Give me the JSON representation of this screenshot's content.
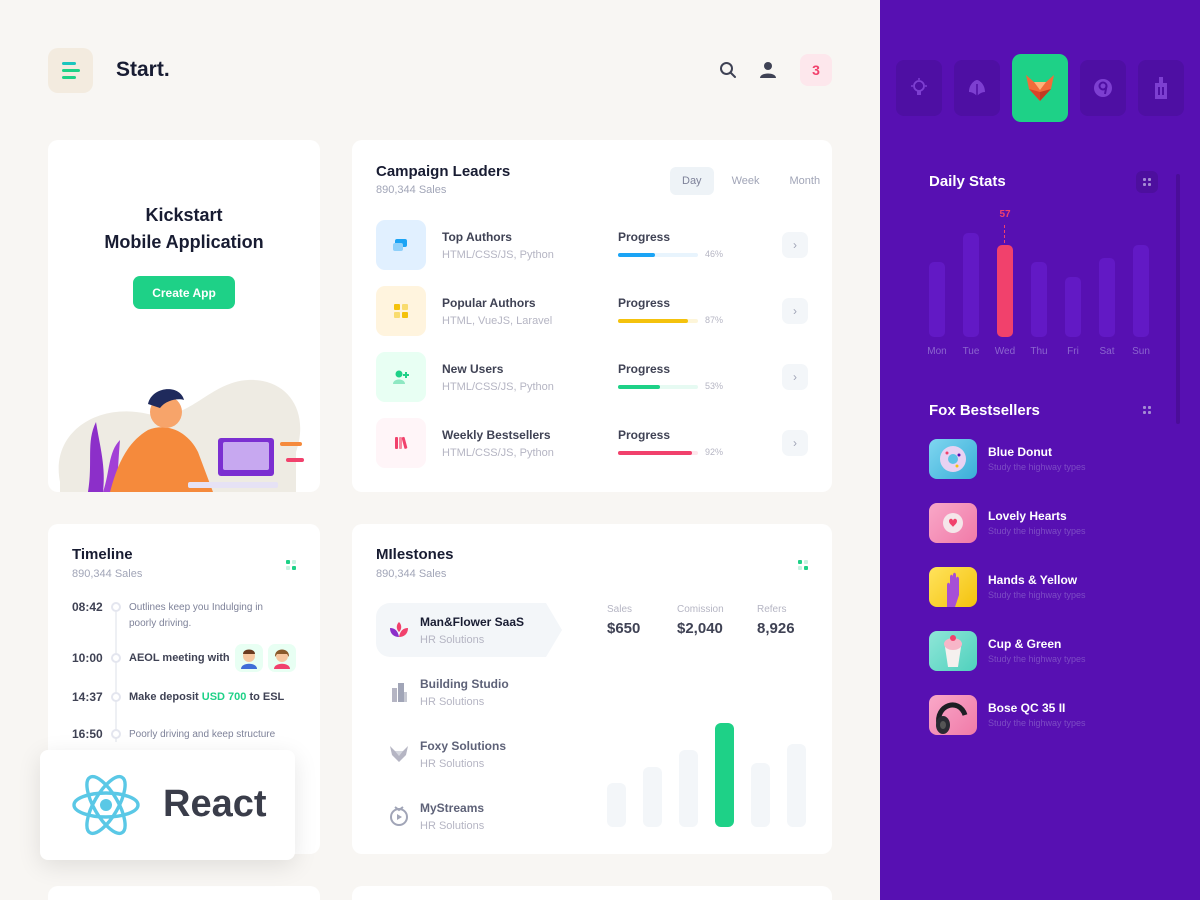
{
  "header": {
    "brand": "Start.",
    "notification_count": "3"
  },
  "kickstart": {
    "title_line1": "Kickstart",
    "title_line2": "Mobile Application",
    "button_label": "Create App"
  },
  "campaign": {
    "title": "Campaign Leaders",
    "subtitle": "890,344 Sales",
    "tabs": [
      "Day",
      "Week",
      "Month"
    ],
    "active_tab": "Day",
    "progress_label": "Progress",
    "rows": [
      {
        "name": "Top Authors",
        "tech": "HTML/CSS/JS, Python",
        "percent": "46%",
        "value": 0.46,
        "color": "#1ba4f5",
        "track": "#e8f4fd",
        "icon_bg": "#e1f0ff"
      },
      {
        "name": "Popular Authors",
        "tech": "HTML, VueJS, Laravel",
        "percent": "87%",
        "value": 0.87,
        "color": "#f4c20d",
        "track": "#fdf5d9",
        "icon_bg": "#fff4de"
      },
      {
        "name": "New Users",
        "tech": "HTML/CSS/JS, Python",
        "percent": "53%",
        "value": 0.53,
        "color": "#1ed187",
        "track": "#e6faf2",
        "icon_bg": "#e8fff3"
      },
      {
        "name": "Weekly Bestsellers",
        "tech": "HTML/CSS/JS, Python",
        "percent": "92%",
        "value": 0.92,
        "color": "#f1416c",
        "track": "#fde7ec",
        "icon_bg": "#fff5f8"
      }
    ]
  },
  "timeline": {
    "title": "Timeline",
    "subtitle": "890,344 Sales",
    "items": [
      {
        "time": "08:42",
        "text": "Outlines keep you Indulging in poorly driving."
      },
      {
        "time": "10:00",
        "text": "AEOL meeting with"
      },
      {
        "time": "14:37",
        "text_before": "Make deposit ",
        "highlight": "USD 700",
        "text_after": " to ESL"
      },
      {
        "time": "16:50",
        "text": "Poorly driving and keep structure"
      }
    ]
  },
  "milestones": {
    "title": "MIlestones",
    "subtitle": "890,344 Sales",
    "items": [
      {
        "name": "Man&Flower SaaS",
        "sub": "HR Solutions"
      },
      {
        "name": "Building Studio",
        "sub": "HR Solutions"
      },
      {
        "name": "Foxy Solutions",
        "sub": "HR Solutions"
      },
      {
        "name": "MyStreams",
        "sub": "HR Solutions"
      }
    ],
    "stats": [
      {
        "label": "Sales",
        "value": "$650"
      },
      {
        "label": "Comission",
        "value": "$2,040"
      },
      {
        "label": "Refers",
        "value": "8,926"
      }
    ],
    "bars": [
      0.42,
      0.58,
      0.74,
      1.0,
      0.62,
      0.8
    ],
    "highlight_bar": 3,
    "highlight_color": "#1ed187"
  },
  "react_badge": {
    "label": "React",
    "logo_color": "#5ac8e6"
  },
  "panel": {
    "background": "#5710b2",
    "apps": [
      "bulb-icon",
      "leaf-icon",
      "fox-icon",
      "nine-icon",
      "building-icon"
    ],
    "active_app": 2,
    "daily_stats": {
      "title": "Daily Stats",
      "days": [
        "Mon",
        "Tue",
        "Wed",
        "Thu",
        "Fri",
        "Sat",
        "Sun"
      ],
      "values": [
        0.72,
        1.0,
        0.88,
        0.72,
        0.58,
        0.76,
        0.88
      ],
      "highlight_index": 2,
      "highlight_value": "57",
      "highlight_color": "#f1416c"
    },
    "bestsellers": {
      "title": "Fox Bestsellers",
      "items": [
        {
          "name": "Blue Donut",
          "sub": "Study the highway types"
        },
        {
          "name": "Lovely Hearts",
          "sub": "Study the highway types"
        },
        {
          "name": "Hands & Yellow",
          "sub": "Study the highway types"
        },
        {
          "name": "Cup & Green",
          "sub": "Study the highway types"
        },
        {
          "name": "Bose QC 35 II",
          "sub": "Study the highway types"
        }
      ]
    }
  }
}
